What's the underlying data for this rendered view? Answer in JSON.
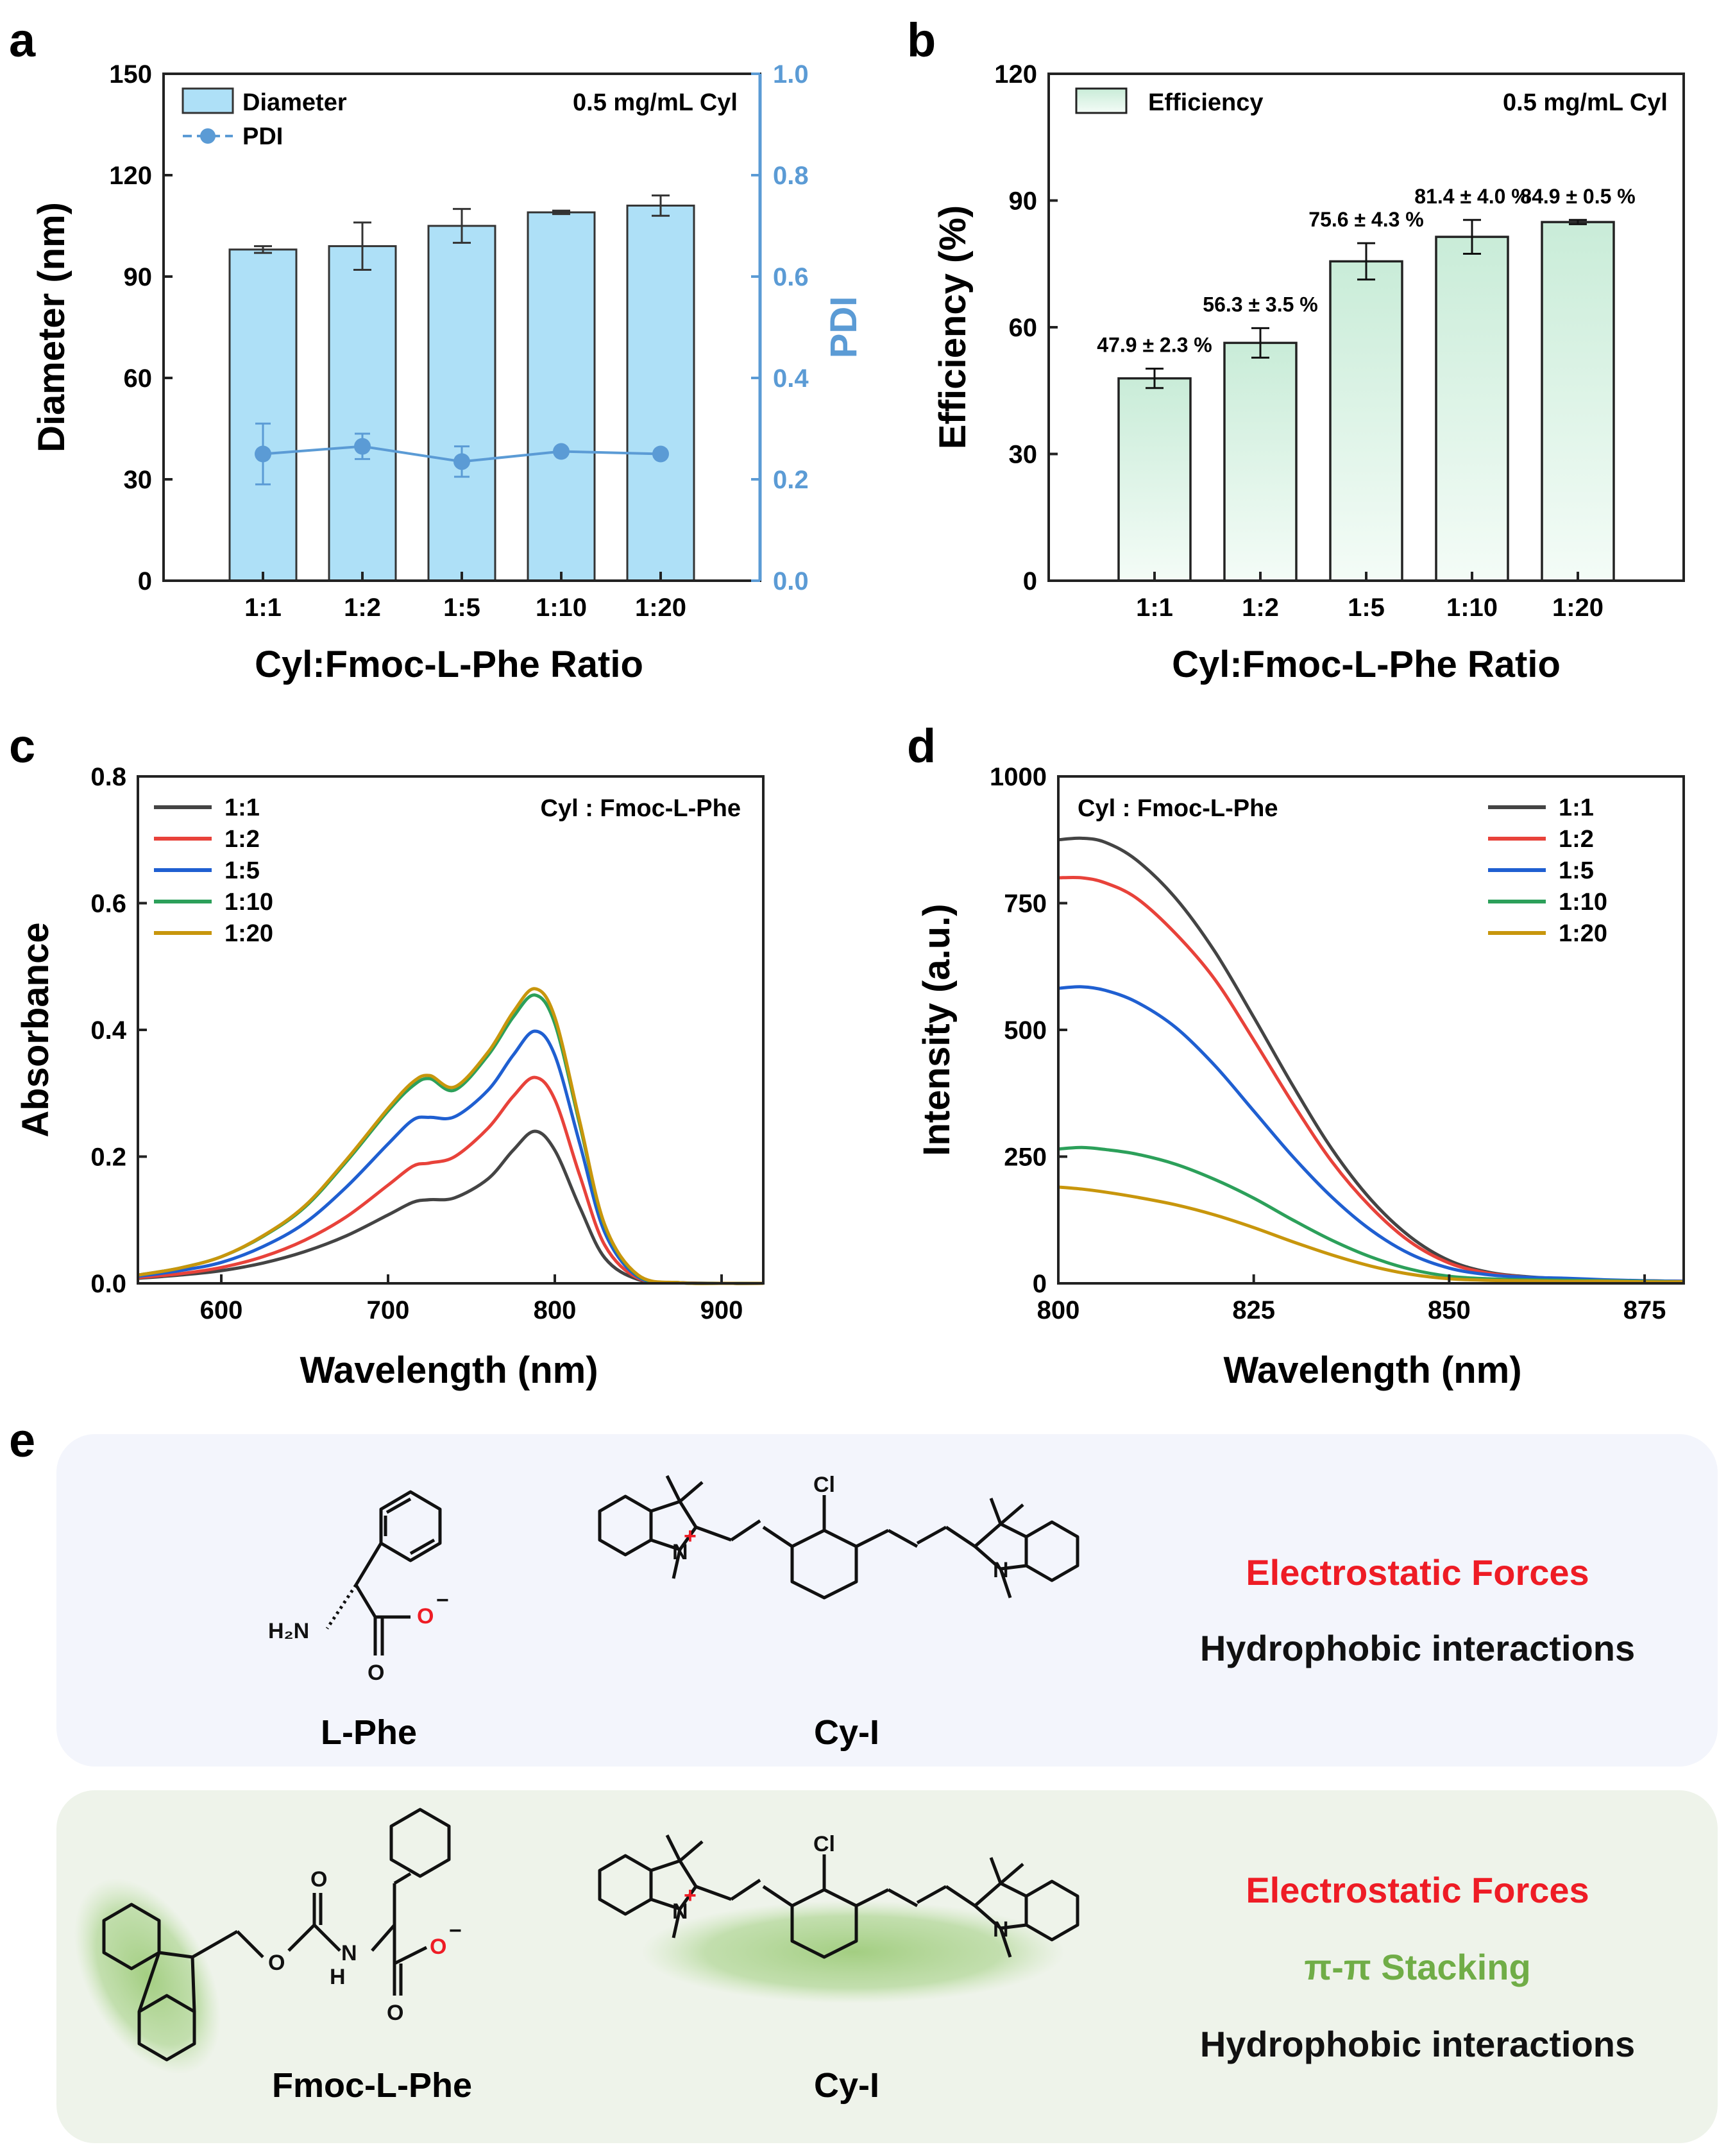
{
  "chart_data": [
    {
      "panel": "a",
      "type": "bar",
      "note": "0.5 mg/mL Cyl",
      "categories": [
        "1:1",
        "1:2",
        "1:5",
        "1:10",
        "1:20"
      ],
      "xlabel": "Cyl:Fmoc-L-Phe Ratio",
      "ylabel": "Diameter (nm)",
      "y2label": "PDI",
      "ylim": [
        0,
        150
      ],
      "y2lim": [
        0,
        1.0
      ],
      "yticks": [
        "0",
        "30",
        "60",
        "90",
        "120",
        "150"
      ],
      "y2ticks": [
        "0.0",
        "0.2",
        "0.4",
        "0.6",
        "0.8",
        "1.0"
      ],
      "legend": [
        "Diameter",
        "PDI"
      ],
      "colors": {
        "bar_fill": "#aee0f7",
        "bar_edge": "#333333",
        "pdi": "#5b9bd5",
        "axis_right": "#5b9bd5"
      },
      "series": [
        {
          "name": "Diameter",
          "kind": "bar",
          "values": [
            98,
            99,
            105,
            109,
            111
          ],
          "errors": [
            1,
            7,
            5,
            0.5,
            3
          ]
        },
        {
          "name": "PDI",
          "kind": "line",
          "values": [
            0.25,
            0.265,
            0.235,
            0.255,
            0.25
          ],
          "errors": [
            0.06,
            0.025,
            0.03,
            0.005,
            0.005
          ]
        }
      ]
    },
    {
      "panel": "b",
      "type": "bar",
      "note": "0.5 mg/mL Cyl",
      "categories": [
        "1:1",
        "1:2",
        "1:5",
        "1:10",
        "1:20"
      ],
      "xlabel": "Cyl:Fmoc-L-Phe Ratio",
      "ylabel": "Efficiency (%)",
      "ylim": [
        0,
        120
      ],
      "yticks": [
        "0",
        "30",
        "60",
        "90",
        "120"
      ],
      "legend": [
        "Efficiency"
      ],
      "colors": {
        "bar_top": "#c9ecd8",
        "bar_bottom": "#f4fcf7",
        "bar_edge": "#222222"
      },
      "series": [
        {
          "name": "Efficiency",
          "values": [
            47.9,
            56.3,
            75.6,
            81.4,
            84.9
          ],
          "errors": [
            2.3,
            3.5,
            4.3,
            4.0,
            0.5
          ]
        }
      ],
      "data_labels": [
        "47.9 ± 2.3 %",
        "56.3 ± 3.5 %",
        "75.6 ± 4.3 %",
        "81.4 ± 4.0 %",
        "84.9 ± 0.5 %"
      ]
    },
    {
      "panel": "c",
      "type": "line",
      "note": "Cyl : Fmoc-L-Phe",
      "xlabel": "Wavelength (nm)",
      "ylabel": "Absorbance",
      "xlim": [
        550,
        925
      ],
      "ylim": [
        0,
        0.8
      ],
      "xticks": [
        "600",
        "700",
        "800",
        "900"
      ],
      "yticks": [
        "0.0",
        "0.2",
        "0.4",
        "0.6",
        "0.8"
      ],
      "x": [
        550,
        575,
        600,
        625,
        650,
        675,
        700,
        715,
        725,
        740,
        760,
        775,
        788,
        800,
        815,
        830,
        850,
        875,
        900,
        925
      ],
      "series": [
        {
          "name": "1:1",
          "color": "#444444",
          "values": [
            0.008,
            0.013,
            0.02,
            0.032,
            0.05,
            0.075,
            0.108,
            0.128,
            0.132,
            0.135,
            0.165,
            0.21,
            0.24,
            0.21,
            0.12,
            0.04,
            0.006,
            0.001,
            0.0,
            0.0
          ]
        },
        {
          "name": "1:2",
          "color": "#e8423a",
          "values": [
            0.009,
            0.015,
            0.025,
            0.042,
            0.068,
            0.105,
            0.155,
            0.185,
            0.19,
            0.2,
            0.245,
            0.295,
            0.325,
            0.29,
            0.17,
            0.06,
            0.008,
            0.001,
            0.0,
            0.0
          ]
        },
        {
          "name": "1:5",
          "color": "#1f5fd1",
          "values": [
            0.011,
            0.02,
            0.033,
            0.058,
            0.095,
            0.152,
            0.22,
            0.258,
            0.262,
            0.263,
            0.305,
            0.36,
            0.398,
            0.36,
            0.22,
            0.08,
            0.01,
            0.001,
            0.0,
            0.0
          ]
        },
        {
          "name": "1:10",
          "color": "#2ca05a",
          "values": [
            0.013,
            0.024,
            0.042,
            0.074,
            0.12,
            0.192,
            0.272,
            0.312,
            0.323,
            0.305,
            0.36,
            0.42,
            0.455,
            0.41,
            0.25,
            0.09,
            0.012,
            0.001,
            0.0,
            0.0
          ]
        },
        {
          "name": "1:20",
          "color": "#c8960c",
          "values": [
            0.013,
            0.024,
            0.042,
            0.075,
            0.122,
            0.195,
            0.276,
            0.318,
            0.328,
            0.31,
            0.365,
            0.428,
            0.465,
            0.42,
            0.255,
            0.092,
            0.013,
            0.001,
            0.0,
            0.0
          ]
        }
      ]
    },
    {
      "panel": "d",
      "type": "line",
      "note": "Cyl : Fmoc-L-Phe",
      "xlabel": "Wavelength (nm)",
      "ylabel": "Intensity (a.u.)",
      "xlim": [
        800,
        880
      ],
      "ylim": [
        0,
        1000
      ],
      "xticks": [
        "800",
        "825",
        "850",
        "875"
      ],
      "yticks": [
        "0",
        "250",
        "500",
        "750",
        "1000"
      ],
      "x": [
        800,
        803,
        806,
        810,
        815,
        820,
        825,
        830,
        835,
        840,
        845,
        850,
        855,
        860,
        865,
        870,
        875,
        880
      ],
      "series": [
        {
          "name": "1:1",
          "color": "#444444",
          "values": [
            875,
            878,
            870,
            835,
            760,
            655,
            525,
            390,
            265,
            165,
            92,
            45,
            22,
            13,
            9,
            6,
            5,
            4
          ]
        },
        {
          "name": "1:2",
          "color": "#e8423a",
          "values": [
            800,
            800,
            790,
            760,
            690,
            600,
            480,
            355,
            240,
            150,
            82,
            40,
            20,
            12,
            8,
            6,
            5,
            4
          ]
        },
        {
          "name": "1:5",
          "color": "#1f5fd1",
          "values": [
            582,
            585,
            578,
            555,
            505,
            430,
            340,
            250,
            170,
            105,
            58,
            30,
            17,
            12,
            10,
            7,
            5,
            4
          ]
        },
        {
          "name": "1:10",
          "color": "#2ca05a",
          "values": [
            265,
            268,
            264,
            255,
            235,
            205,
            168,
            125,
            85,
            52,
            28,
            14,
            9,
            7,
            6,
            5,
            4,
            3
          ]
        },
        {
          "name": "1:20",
          "color": "#c8960c",
          "values": [
            190,
            186,
            180,
            170,
            155,
            135,
            110,
            82,
            56,
            34,
            18,
            9,
            6,
            5,
            4,
            4,
            3,
            3
          ]
        }
      ]
    }
  ],
  "panels": {
    "a": "a",
    "b": "b",
    "c": "c",
    "d": "d",
    "e": "e"
  },
  "scheme": {
    "top_box": {
      "color": "#f3f5fc",
      "molecules": [
        "L-Phe",
        "Cy-I"
      ],
      "atoms": {
        "amine": "H₂N",
        "oxygen": "O",
        "charge_minus": "−",
        "chlorine": "Cl",
        "nitrogen": "N",
        "charge_plus": "+"
      },
      "interactions": [
        {
          "text": "Electrostatic Forces",
          "color": "#ee1c25"
        },
        {
          "text": "Hydrophobic interactions",
          "color": "#111111"
        }
      ]
    },
    "bottom_box": {
      "color": "#eef3ea",
      "highlight": "#a9d08e",
      "molecules": [
        "Fmoc-L-Phe",
        "Cy-I"
      ],
      "atoms": {
        "nh": "H",
        "nitrogen": "N",
        "oxygen": "O",
        "charge_minus": "−",
        "chlorine": "Cl",
        "charge_plus": "+"
      },
      "interactions": [
        {
          "text": "Electrostatic Forces",
          "color": "#ee1c25"
        },
        {
          "text": "π-π Stacking",
          "color": "#70ad47"
        },
        {
          "text": "Hydrophobic interactions",
          "color": "#111111"
        }
      ]
    }
  }
}
